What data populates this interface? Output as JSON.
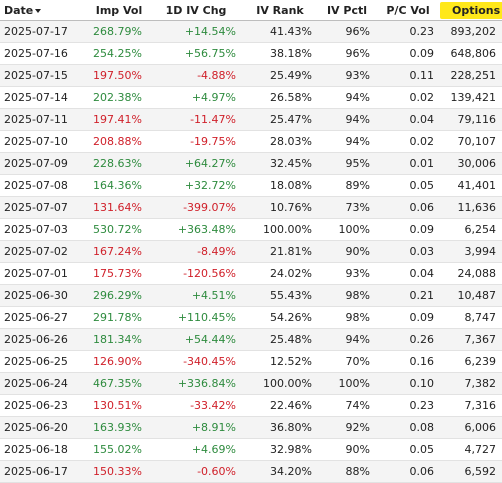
{
  "headers": {
    "date": "Date",
    "imp_vol": "Imp Vol",
    "iv_chg": "1D IV Chg",
    "iv_rank": "IV Rank",
    "iv_pctl": "IV Pctl",
    "pc_vol": "P/C Vol",
    "options_vol": "Options Vol"
  },
  "colors": {
    "positive": "#2e8b3e",
    "negative": "#d0202a",
    "highlight": "#ffe81a"
  },
  "sort_icon": "sort-down-icon",
  "rows": [
    {
      "date": "2025-07-17",
      "imp_vol": "268.79%",
      "iv_chg": "+14.54%",
      "iv_rank": "41.43%",
      "iv_pctl": "96%",
      "pc_vol": "0.23",
      "options_vol": "893,202",
      "trend": "up"
    },
    {
      "date": "2025-07-16",
      "imp_vol": "254.25%",
      "iv_chg": "+56.75%",
      "iv_rank": "38.18%",
      "iv_pctl": "96%",
      "pc_vol": "0.09",
      "options_vol": "648,806",
      "trend": "up"
    },
    {
      "date": "2025-07-15",
      "imp_vol": "197.50%",
      "iv_chg": "-4.88%",
      "iv_rank": "25.49%",
      "iv_pctl": "93%",
      "pc_vol": "0.11",
      "options_vol": "228,251",
      "trend": "down"
    },
    {
      "date": "2025-07-14",
      "imp_vol": "202.38%",
      "iv_chg": "+4.97%",
      "iv_rank": "26.58%",
      "iv_pctl": "94%",
      "pc_vol": "0.02",
      "options_vol": "139,421",
      "trend": "up"
    },
    {
      "date": "2025-07-11",
      "imp_vol": "197.41%",
      "iv_chg": "-11.47%",
      "iv_rank": "25.47%",
      "iv_pctl": "94%",
      "pc_vol": "0.04",
      "options_vol": "79,116",
      "trend": "down"
    },
    {
      "date": "2025-07-10",
      "imp_vol": "208.88%",
      "iv_chg": "-19.75%",
      "iv_rank": "28.03%",
      "iv_pctl": "94%",
      "pc_vol": "0.02",
      "options_vol": "70,107",
      "trend": "down"
    },
    {
      "date": "2025-07-09",
      "imp_vol": "228.63%",
      "iv_chg": "+64.27%",
      "iv_rank": "32.45%",
      "iv_pctl": "95%",
      "pc_vol": "0.01",
      "options_vol": "30,006",
      "trend": "up"
    },
    {
      "date": "2025-07-08",
      "imp_vol": "164.36%",
      "iv_chg": "+32.72%",
      "iv_rank": "18.08%",
      "iv_pctl": "89%",
      "pc_vol": "0.05",
      "options_vol": "41,401",
      "trend": "up"
    },
    {
      "date": "2025-07-07",
      "imp_vol": "131.64%",
      "iv_chg": "-399.07%",
      "iv_rank": "10.76%",
      "iv_pctl": "73%",
      "pc_vol": "0.06",
      "options_vol": "11,636",
      "trend": "down"
    },
    {
      "date": "2025-07-03",
      "imp_vol": "530.72%",
      "iv_chg": "+363.48%",
      "iv_rank": "100.00%",
      "iv_pctl": "100%",
      "pc_vol": "0.09",
      "options_vol": "6,254",
      "trend": "up"
    },
    {
      "date": "2025-07-02",
      "imp_vol": "167.24%",
      "iv_chg": "-8.49%",
      "iv_rank": "21.81%",
      "iv_pctl": "90%",
      "pc_vol": "0.03",
      "options_vol": "3,994",
      "trend": "down"
    },
    {
      "date": "2025-07-01",
      "imp_vol": "175.73%",
      "iv_chg": "-120.56%",
      "iv_rank": "24.02%",
      "iv_pctl": "93%",
      "pc_vol": "0.04",
      "options_vol": "24,088",
      "trend": "down"
    },
    {
      "date": "2025-06-30",
      "imp_vol": "296.29%",
      "iv_chg": "+4.51%",
      "iv_rank": "55.43%",
      "iv_pctl": "98%",
      "pc_vol": "0.21",
      "options_vol": "10,487",
      "trend": "up"
    },
    {
      "date": "2025-06-27",
      "imp_vol": "291.78%",
      "iv_chg": "+110.45%",
      "iv_rank": "54.26%",
      "iv_pctl": "98%",
      "pc_vol": "0.09",
      "options_vol": "8,747",
      "trend": "up"
    },
    {
      "date": "2025-06-26",
      "imp_vol": "181.34%",
      "iv_chg": "+54.44%",
      "iv_rank": "25.48%",
      "iv_pctl": "94%",
      "pc_vol": "0.26",
      "options_vol": "7,367",
      "trend": "up"
    },
    {
      "date": "2025-06-25",
      "imp_vol": "126.90%",
      "iv_chg": "-340.45%",
      "iv_rank": "12.52%",
      "iv_pctl": "70%",
      "pc_vol": "0.16",
      "options_vol": "6,239",
      "trend": "down"
    },
    {
      "date": "2025-06-24",
      "imp_vol": "467.35%",
      "iv_chg": "+336.84%",
      "iv_rank": "100.00%",
      "iv_pctl": "100%",
      "pc_vol": "0.10",
      "options_vol": "7,382",
      "trend": "up"
    },
    {
      "date": "2025-06-23",
      "imp_vol": "130.51%",
      "iv_chg": "-33.42%",
      "iv_rank": "22.46%",
      "iv_pctl": "74%",
      "pc_vol": "0.23",
      "options_vol": "7,316",
      "trend": "down"
    },
    {
      "date": "2025-06-20",
      "imp_vol": "163.93%",
      "iv_chg": "+8.91%",
      "iv_rank": "36.80%",
      "iv_pctl": "92%",
      "pc_vol": "0.08",
      "options_vol": "6,006",
      "trend": "up"
    },
    {
      "date": "2025-06-18",
      "imp_vol": "155.02%",
      "iv_chg": "+4.69%",
      "iv_rank": "32.98%",
      "iv_pctl": "90%",
      "pc_vol": "0.05",
      "options_vol": "4,727",
      "trend": "up"
    },
    {
      "date": "2025-06-17",
      "imp_vol": "150.33%",
      "iv_chg": "-0.60%",
      "iv_rank": "34.20%",
      "iv_pctl": "88%",
      "pc_vol": "0.06",
      "options_vol": "6,592",
      "trend": "down"
    }
  ]
}
